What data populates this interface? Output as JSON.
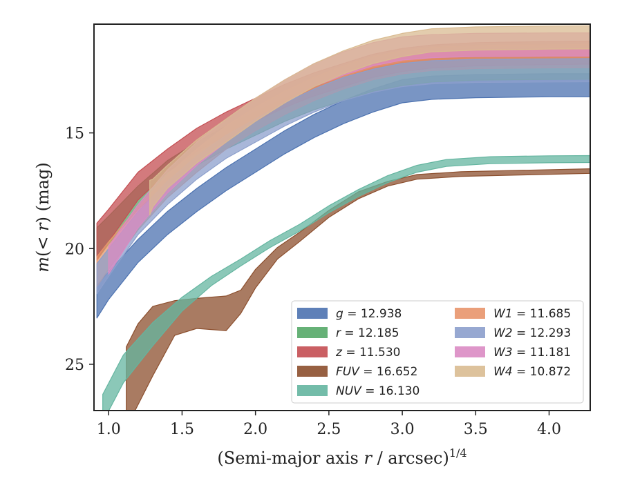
{
  "chart_data": {
    "type": "line",
    "title": "",
    "xlabel": "(Semi-major axis r / arcsec)",
    "xlabel_exponent": "1/4",
    "ylabel": "m(< r) (mag)",
    "xlim": [
      0.9,
      4.28
    ],
    "ylim": [
      27,
      10.3
    ],
    "y_inverted": true,
    "xticks": [
      "1.0",
      "1.5",
      "2.0",
      "2.5",
      "3.0",
      "3.5",
      "4.0"
    ],
    "yticks": [
      "15",
      "20",
      "25"
    ],
    "grid": false,
    "legend_position": "lower-right",
    "series": [
      {
        "name": "g = 12.938",
        "label_var": "g",
        "label_val": "= 12.938",
        "color": "#4c72b0",
        "x": [
          0.92,
          1.0,
          1.2,
          1.4,
          1.6,
          1.8,
          2.0,
          2.2,
          2.4,
          2.6,
          2.8,
          3.0,
          3.2,
          3.5,
          4.0,
          4.28
        ],
        "y": [
          22.3,
          21.6,
          20.1,
          18.9,
          17.9,
          17.0,
          16.2,
          15.4,
          14.7,
          14.1,
          13.6,
          13.2,
          13.05,
          12.98,
          12.94,
          12.94
        ],
        "w": [
          1.4,
          1.2,
          1.0,
          1.0,
          1.0,
          1.0,
          1.0,
          1.0,
          1.0,
          1.0,
          1.0,
          1.0,
          1.0,
          1.0,
          1.0,
          1.0
        ]
      },
      {
        "name": "r = 12.185",
        "label_var": "r",
        "label_val": "= 12.185",
        "color": "#55a868",
        "x": [
          0.92,
          1.0,
          1.2,
          1.4,
          1.6,
          1.8,
          2.0,
          2.2,
          2.4,
          2.6,
          2.8,
          3.0,
          3.2,
          3.5,
          4.0,
          4.28
        ],
        "y": [
          19.8,
          19.2,
          17.8,
          16.7,
          15.9,
          15.2,
          14.6,
          14.0,
          13.5,
          13.1,
          12.7,
          12.45,
          12.3,
          12.22,
          12.19,
          12.18
        ],
        "w": [
          1.4,
          1.2,
          1.0,
          1.0,
          1.0,
          1.0,
          1.0,
          1.0,
          1.0,
          1.0,
          1.0,
          1.0,
          1.0,
          1.0,
          1.0,
          1.0
        ]
      },
      {
        "name": "z = 11.530",
        "label_var": "z",
        "label_val": "= 11.530",
        "color": "#c44e52",
        "x": [
          0.92,
          1.0,
          1.2,
          1.4,
          1.6,
          1.8,
          2.0,
          2.2,
          2.4,
          2.6,
          2.8,
          3.0,
          3.2,
          3.5,
          4.0,
          4.28
        ],
        "y": [
          19.7,
          19.0,
          17.3,
          16.2,
          15.3,
          14.6,
          14.0,
          13.4,
          12.9,
          12.5,
          12.1,
          11.85,
          11.7,
          11.6,
          11.55,
          11.53
        ],
        "w": [
          1.6,
          1.4,
          1.2,
          1.0,
          1.0,
          1.0,
          1.0,
          1.0,
          1.0,
          1.0,
          1.0,
          1.0,
          1.0,
          1.0,
          1.0,
          1.0
        ]
      },
      {
        "name": "FUV = 16.652",
        "label_var": "FUV",
        "label_val": "= 16.652",
        "color": "#8c4f2e",
        "x": [
          1.12,
          1.2,
          1.3,
          1.45,
          1.6,
          1.8,
          1.9,
          2.0,
          2.15,
          2.3,
          2.5,
          2.7,
          2.9,
          3.1,
          3.4,
          3.8,
          4.28
        ],
        "y": [
          26.0,
          25.0,
          24.0,
          23.0,
          22.8,
          22.8,
          22.3,
          21.3,
          20.2,
          19.5,
          18.5,
          17.7,
          17.2,
          16.9,
          16.78,
          16.72,
          16.65
        ],
        "w": [
          3.5,
          3.5,
          3.0,
          1.5,
          1.3,
          1.5,
          1.0,
          0.8,
          0.5,
          0.4,
          0.3,
          0.3,
          0.2,
          0.2,
          0.2,
          0.2,
          0.2
        ]
      },
      {
        "name": "NUV = 16.130",
        "label_var": "NUV",
        "label_val": "= 16.130",
        "color": "#64b5a0",
        "x": [
          0.96,
          1.1,
          1.3,
          1.5,
          1.7,
          1.9,
          2.1,
          2.3,
          2.5,
          2.7,
          2.9,
          3.1,
          3.3,
          3.6,
          4.0,
          4.28
        ],
        "y": [
          26.9,
          25.2,
          23.7,
          22.4,
          21.4,
          20.6,
          19.8,
          19.1,
          18.3,
          17.6,
          17.0,
          16.55,
          16.3,
          16.18,
          16.14,
          16.13
        ],
        "w": [
          1.2,
          1.2,
          1.0,
          0.6,
          0.4,
          0.3,
          0.3,
          0.3,
          0.3,
          0.3,
          0.3,
          0.3,
          0.3,
          0.3,
          0.3,
          0.3
        ]
      },
      {
        "name": "W1 = 11.685",
        "label_var": "W1",
        "label_val": "= 11.685",
        "color": "#e8956b",
        "x": [
          0.92,
          1.0,
          1.2,
          1.4,
          1.6,
          1.8,
          2.0,
          2.2,
          2.4,
          2.6,
          2.8,
          3.0,
          3.2,
          3.5,
          4.0,
          4.28
        ],
        "y": [
          21.0,
          20.3,
          18.7,
          17.3,
          16.2,
          15.2,
          14.4,
          13.7,
          13.1,
          12.6,
          12.2,
          11.95,
          11.8,
          11.72,
          11.69,
          11.68
        ],
        "w": [
          1.3,
          1.2,
          1.0,
          1.0,
          1.0,
          1.0,
          1.0,
          1.0,
          1.0,
          1.0,
          1.0,
          1.0,
          1.0,
          1.0,
          1.0,
          1.0
        ]
      },
      {
        "name": "W2 = 12.293",
        "label_var": "W2",
        "label_val": "= 12.293",
        "color": "#8c9fcc",
        "x": [
          0.92,
          1.0,
          1.2,
          1.4,
          1.6,
          1.8,
          2.0,
          2.2,
          2.4,
          2.6,
          2.8,
          3.0,
          3.2,
          3.5,
          4.0,
          4.28
        ],
        "y": [
          21.3,
          20.6,
          18.9,
          17.6,
          16.5,
          15.6,
          14.9,
          14.2,
          13.6,
          13.1,
          12.75,
          12.5,
          12.38,
          12.32,
          12.3,
          12.29
        ],
        "w": [
          1.3,
          1.2,
          1.0,
          1.0,
          1.0,
          1.0,
          1.0,
          1.0,
          1.0,
          1.0,
          1.0,
          1.0,
          1.0,
          1.0,
          1.0,
          1.0
        ]
      },
      {
        "name": "W3 = 11.181",
        "label_var": "W3",
        "label_val": "= 11.181",
        "color": "#da8bc3",
        "x": [
          1.0,
          1.2,
          1.4,
          1.6,
          1.8,
          2.0,
          2.2,
          2.4,
          2.6,
          2.8,
          3.0,
          3.2,
          3.5,
          4.0,
          4.28
        ],
        "y": [
          20.5,
          18.6,
          17.1,
          15.9,
          14.9,
          14.0,
          13.2,
          12.5,
          12.0,
          11.6,
          11.35,
          11.25,
          11.2,
          11.18,
          11.18
        ],
        "w": [
          1.2,
          1.0,
          1.0,
          1.0,
          1.0,
          1.0,
          1.0,
          1.0,
          1.0,
          1.0,
          1.0,
          1.0,
          1.0,
          1.0,
          1.0
        ]
      },
      {
        "name": "W4 = 10.872",
        "label_var": "W4",
        "label_val": "= 10.872",
        "color": "#d9bb91",
        "x": [
          1.28,
          1.3,
          1.4,
          1.6,
          1.8,
          2.0,
          2.2,
          2.4,
          2.6,
          2.8,
          3.0,
          3.2,
          3.5,
          4.0,
          4.28
        ],
        "y": [
          17.8,
          17.6,
          16.9,
          15.8,
          14.9,
          14.0,
          13.2,
          12.5,
          11.95,
          11.5,
          11.2,
          11.0,
          10.92,
          10.88,
          10.87
        ],
        "w": [
          1.5,
          1.2,
          1.0,
          1.0,
          1.0,
          1.0,
          1.0,
          1.0,
          1.0,
          1.0,
          1.0,
          1.0,
          1.0,
          1.0,
          1.0
        ]
      }
    ]
  }
}
